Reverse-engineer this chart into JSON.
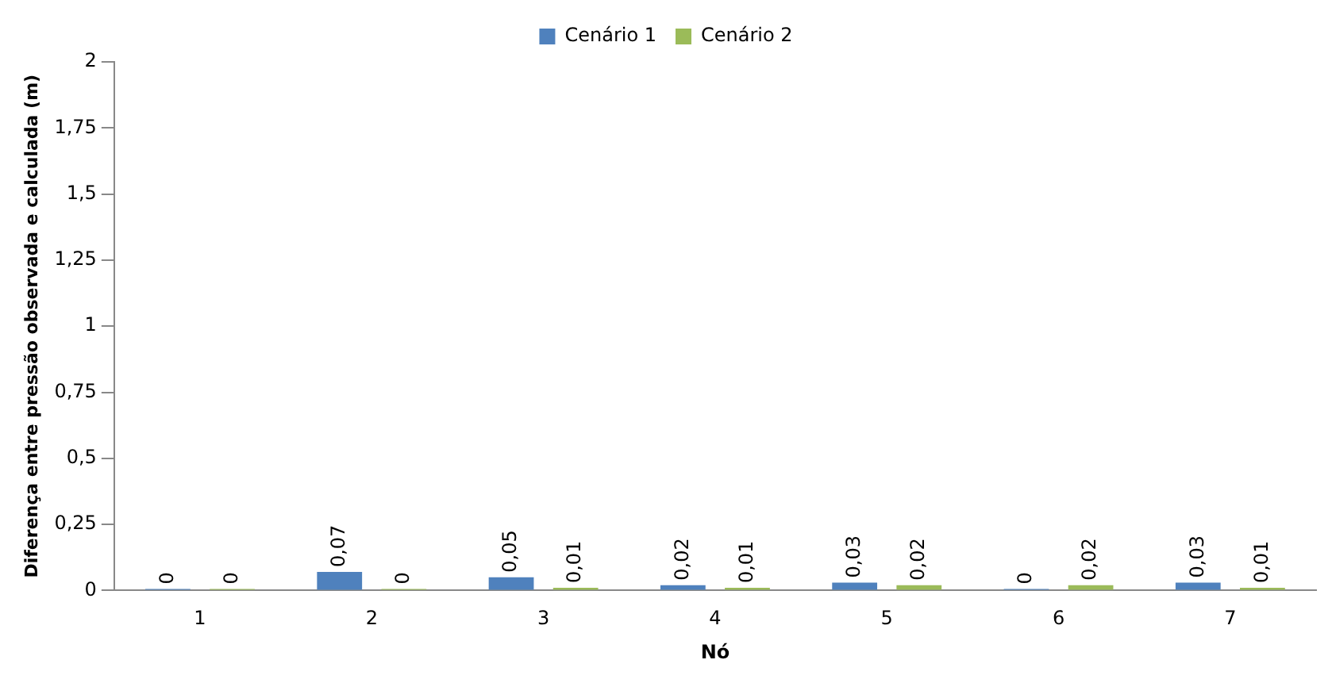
{
  "chart_data": {
    "type": "bar",
    "xlabel": "Nó",
    "ylabel": "Diferença entre pressão observada e calculada (m)",
    "categories": [
      "1",
      "2",
      "3",
      "4",
      "5",
      "6",
      "7"
    ],
    "series": [
      {
        "name": "Cenário 1",
        "color": "#4f81bd",
        "values": [
          0,
          0.07,
          0.05,
          0.02,
          0.03,
          0,
          0.03
        ],
        "value_labels": [
          "0",
          "0,07",
          "0,05",
          "0,02",
          "0,03",
          "0",
          "0,03"
        ]
      },
      {
        "name": "Cenário 2",
        "color": "#9bbb59",
        "values": [
          0,
          0,
          0.01,
          0.01,
          0.02,
          0.02,
          0.01
        ],
        "value_labels": [
          "0",
          "0",
          "0,01",
          "0,01",
          "0,02",
          "0,02",
          "0,01"
        ]
      }
    ],
    "ylim": [
      0,
      2
    ],
    "yticks": [
      0,
      {
        "value": 0.25,
        "label": "0,25"
      },
      {
        "value": 0.5,
        "label": "0,5"
      },
      {
        "value": 0.75,
        "label": "0,75"
      },
      1,
      {
        "value": 1.25,
        "label": "1,25"
      },
      {
        "value": 1.5,
        "label": "1,5"
      },
      {
        "value": 1.75,
        "label": "1,75"
      },
      2
    ],
    "grid": false,
    "legend": "top"
  }
}
